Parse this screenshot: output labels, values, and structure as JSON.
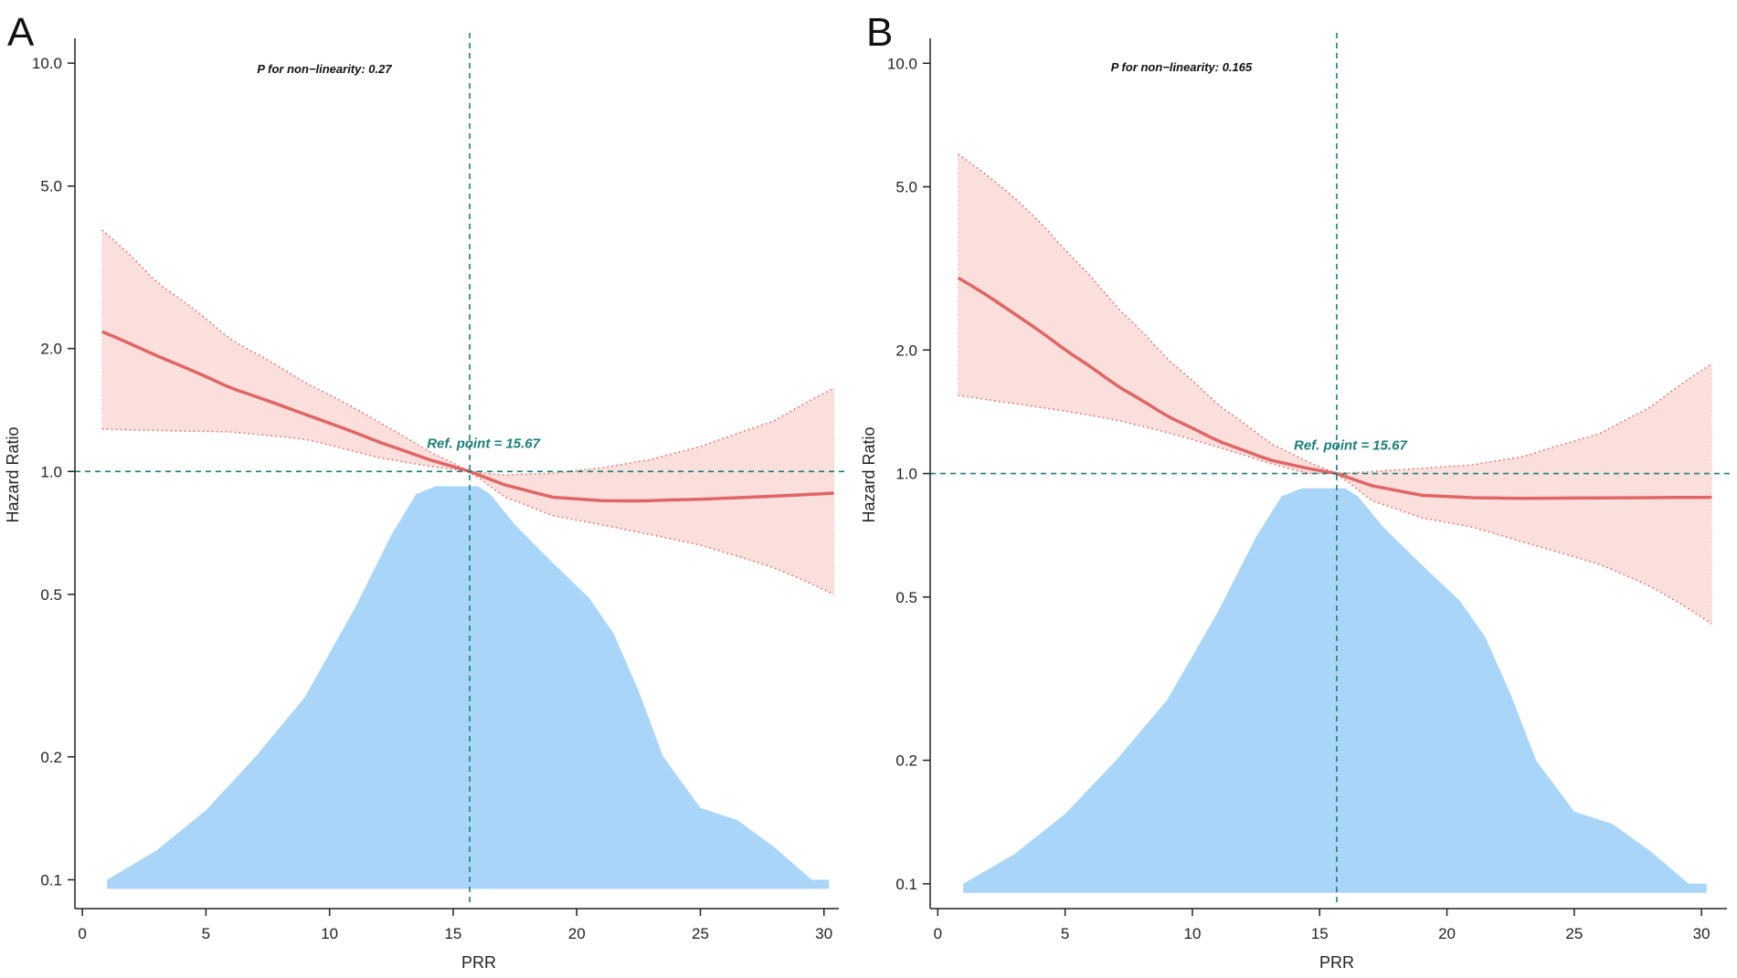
{
  "colors": {
    "curve": "#e06666",
    "band_fill": "#f9d9d6",
    "band_border": "#e06666",
    "density": "#a9d6f8",
    "reference": "#1a7f78",
    "axis": "#222222"
  },
  "chart_data": [
    {
      "panel": "A",
      "type": "line",
      "title": "",
      "xlabel": "PRR",
      "ylabel": "Hazard Ratio",
      "xlim": [
        -0.3,
        30.6
      ],
      "ylim": [
        0.085,
        11.5
      ],
      "yscale": "log",
      "xticks": [
        0,
        5,
        10,
        15,
        20,
        25,
        30
      ],
      "yticks": [
        0.1,
        0.2,
        0.5,
        1.0,
        2.0,
        5.0,
        10.0
      ],
      "ytick_labels": [
        "0.1",
        "0.2",
        "0.5",
        "1.0",
        "2.0",
        "5.0",
        "10.0"
      ],
      "annotation": "P for non−linearity: 0.27",
      "ref_point_label": "Ref. point = 15.67",
      "ref_x": 15.67,
      "ref_y": 1.0,
      "series": [
        {
          "name": "Hazard Ratio",
          "x": [
            0.8,
            3,
            6,
            9,
            12,
            14,
            15.67,
            17,
            19,
            21,
            22.5,
            25,
            28,
            30.4
          ],
          "values": [
            2.2,
            1.92,
            1.6,
            1.38,
            1.18,
            1.07,
            1.0,
            0.93,
            0.865,
            0.848,
            0.847,
            0.855,
            0.87,
            0.885
          ]
        },
        {
          "name": "95% CI upper",
          "x": [
            0.8,
            3,
            6,
            9,
            12,
            14,
            15.67,
            17,
            19,
            21,
            23,
            25,
            28,
            30.4
          ],
          "values": [
            3.9,
            2.9,
            2.1,
            1.65,
            1.32,
            1.12,
            1.0,
            0.98,
            0.99,
            1.02,
            1.07,
            1.15,
            1.33,
            1.6
          ]
        },
        {
          "name": "95% CI lower",
          "x": [
            0.8,
            3,
            6,
            9,
            12,
            14,
            15.67,
            17,
            19,
            21,
            23,
            25,
            28,
            30.4
          ],
          "values": [
            1.27,
            1.26,
            1.25,
            1.2,
            1.08,
            1.03,
            1.0,
            0.87,
            0.78,
            0.74,
            0.7,
            0.66,
            0.58,
            0.5
          ]
        }
      ],
      "density": {
        "x": [
          1,
          3,
          5,
          7,
          9,
          11,
          12.5,
          13.5,
          14.3,
          15,
          16,
          16.5,
          17.5,
          19,
          20.5,
          21.5,
          22.5,
          23.5,
          25,
          26.5,
          28,
          29.5,
          30.2
        ],
        "values": [
          0.1,
          0.118,
          0.148,
          0.2,
          0.28,
          0.46,
          0.7,
          0.88,
          0.92,
          0.92,
          0.92,
          0.88,
          0.74,
          0.6,
          0.49,
          0.4,
          0.29,
          0.2,
          0.15,
          0.14,
          0.12,
          0.1,
          0.1
        ]
      }
    },
    {
      "panel": "B",
      "type": "line",
      "title": "",
      "xlabel": "PRR",
      "ylabel": "Hazard Ratio",
      "xlim": [
        -0.3,
        31.0
      ],
      "ylim": [
        0.087,
        11.5
      ],
      "yscale": "log",
      "xticks": [
        0,
        5,
        10,
        15,
        20,
        25,
        30
      ],
      "yticks": [
        0.1,
        0.2,
        0.5,
        1.0,
        2.0,
        5.0,
        10.0
      ],
      "ytick_labels": [
        "0.1",
        "0.2",
        "0.5",
        "1.0",
        "2.0",
        "5.0",
        "10.0"
      ],
      "annotation": "P for non−linearity: 0.165",
      "ref_point_label": "Ref. point = 15.67",
      "ref_x": 15.67,
      "ref_y": 1.0,
      "series": [
        {
          "name": "Hazard Ratio",
          "x": [
            0.8,
            3,
            5,
            7,
            9,
            11,
            13,
            14.5,
            15.67,
            17,
            19,
            21,
            23,
            26,
            30.4
          ],
          "values": [
            3.0,
            2.45,
            2.0,
            1.64,
            1.38,
            1.2,
            1.08,
            1.03,
            1.0,
            0.935,
            0.885,
            0.873,
            0.87,
            0.872,
            0.875
          ]
        },
        {
          "name": "95% CI upper",
          "x": [
            0.8,
            3,
            5,
            7,
            9,
            11,
            13,
            14.5,
            15.67,
            17,
            19,
            21,
            23,
            26,
            28,
            30.4
          ],
          "values": [
            6.0,
            4.7,
            3.5,
            2.55,
            1.9,
            1.47,
            1.19,
            1.07,
            1.0,
            1.01,
            1.03,
            1.05,
            1.1,
            1.25,
            1.45,
            1.85
          ]
        },
        {
          "name": "95% CI lower",
          "x": [
            0.8,
            3,
            5,
            7,
            9,
            11,
            13,
            14.5,
            15.67,
            17,
            19,
            21,
            23,
            26,
            28,
            30.4
          ],
          "values": [
            1.55,
            1.48,
            1.42,
            1.35,
            1.26,
            1.16,
            1.06,
            1.0,
            1.0,
            0.86,
            0.78,
            0.74,
            0.68,
            0.6,
            0.53,
            0.43
          ]
        }
      ],
      "density": {
        "x": [
          1,
          3,
          5,
          7,
          9,
          11,
          12.5,
          13.5,
          14.3,
          15,
          16,
          16.5,
          17.5,
          19,
          20.5,
          21.5,
          22.5,
          23.5,
          25,
          26.5,
          28,
          29.5,
          30.2
        ],
        "values": [
          0.1,
          0.118,
          0.148,
          0.2,
          0.28,
          0.46,
          0.7,
          0.88,
          0.92,
          0.92,
          0.92,
          0.88,
          0.74,
          0.6,
          0.49,
          0.4,
          0.29,
          0.2,
          0.15,
          0.14,
          0.12,
          0.1,
          0.1
        ]
      }
    }
  ]
}
